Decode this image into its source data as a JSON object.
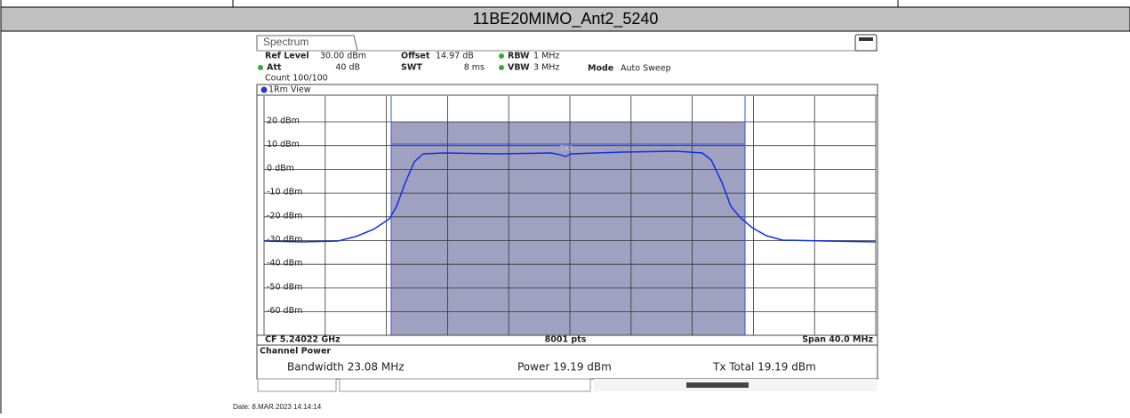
{
  "header": {
    "title": "11BE20MIMO_Ant2_5240"
  },
  "screen": {
    "tab": "Spectrum",
    "settings": {
      "ref_level_label": "Ref Level",
      "ref_level": "30.00 dBm",
      "offset_label": "Offset",
      "offset": "14.97 dB",
      "rbw_label": "RBW",
      "rbw": "1 MHz",
      "att_label": "Att",
      "att": "40 dB",
      "swt_label": "SWT",
      "swt": "8 ms",
      "vbw_label": "VBW",
      "vbw": "3 MHz",
      "mode_label": "Mode",
      "mode": "Auto Sweep",
      "count": "Count 100/100"
    },
    "view": "1Rm View",
    "y_labels": [
      "20 dBm",
      "10 dBm",
      "0 dBm",
      "-10 dBm",
      "-20 dBm",
      "-30 dBm",
      "-40 dBm",
      "-50 dBm",
      "-60 dBm"
    ],
    "channel_label": "TX1",
    "footer": {
      "cf": "CF 5.24022 GHz",
      "pts": "8001 pts",
      "span": "Span 40.0 MHz"
    },
    "channel_power": {
      "title": "Channel Power",
      "bandwidth": "Bandwidth 23.08 MHz",
      "power": "Power 19.19 dBm",
      "tx_total": "Tx Total 19.19 dBm"
    }
  },
  "date": "Date: 8.MAR.2023 14:14:14"
}
